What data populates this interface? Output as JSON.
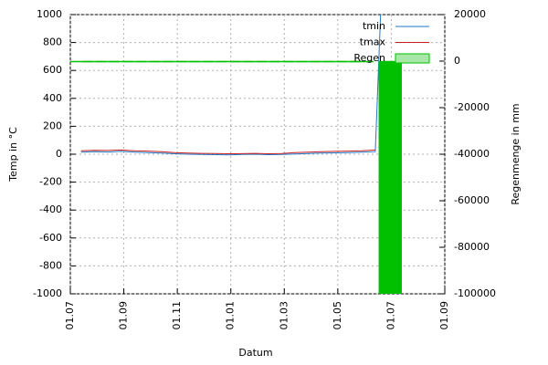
{
  "chart_data": {
    "type": "line",
    "xlabel": "Datum",
    "ylabel": "Temp in °C",
    "y2label": "Regenmenge in mm",
    "xlim": [
      0,
      14
    ],
    "xticks": [
      {
        "value": 0,
        "label": "01.07"
      },
      {
        "value": 2,
        "label": "01.09"
      },
      {
        "value": 4,
        "label": "01.11"
      },
      {
        "value": 6,
        "label": "01.01"
      },
      {
        "value": 8,
        "label": "01.03"
      },
      {
        "value": 10,
        "label": "01.05"
      },
      {
        "value": 12,
        "label": "01.07"
      },
      {
        "value": 14,
        "label": "01.09"
      }
    ],
    "ylim": [
      -1000,
      1000
    ],
    "yticks": [
      -1000,
      -800,
      -600,
      -400,
      -200,
      0,
      200,
      400,
      600,
      800,
      1000
    ],
    "y2lim": [
      -100000,
      20000
    ],
    "y2ticks": [
      -100000,
      -80000,
      -60000,
      -40000,
      -20000,
      0,
      20000
    ],
    "grid": true,
    "legend": "top-right",
    "series": [
      {
        "name": "tmin",
        "color": "#1f78c8",
        "style": "line",
        "x": [
          0.4,
          0.9,
          1.4,
          1.9,
          2.4,
          2.9,
          3.4,
          3.9,
          4.4,
          4.9,
          5.4,
          5.9,
          6.4,
          6.9,
          7.4,
          7.9,
          8.4,
          8.9,
          9.4,
          9.9,
          10.4,
          10.9,
          11.4,
          11.6
        ],
        "values": [
          15,
          18,
          16,
          20,
          15,
          12,
          8,
          3,
          0,
          -2,
          -3,
          -5,
          -2,
          0,
          -3,
          -2,
          2,
          5,
          8,
          10,
          12,
          15,
          18,
          1000
        ]
      },
      {
        "name": "tmax",
        "color": "#c81e1e",
        "style": "line",
        "x": [
          0.4,
          0.9,
          1.4,
          1.9,
          2.4,
          2.9,
          3.4,
          3.9,
          4.4,
          4.9,
          5.4,
          5.9,
          6.4,
          6.9,
          7.4,
          7.9,
          8.4,
          8.9,
          9.4,
          9.9,
          10.4,
          10.9,
          11.4
        ],
        "values": [
          25,
          28,
          27,
          30,
          25,
          22,
          18,
          12,
          8,
          6,
          5,
          3,
          4,
          6,
          3,
          5,
          12,
          15,
          18,
          20,
          22,
          25,
          30
        ]
      },
      {
        "name": "Regen",
        "color": "#00c000",
        "style": "boxes",
        "axis": "y2",
        "x": [
          0.4,
          0.9,
          1.4,
          1.9,
          2.4,
          2.9,
          3.4,
          3.9,
          4.4,
          4.9,
          5.4,
          5.9,
          6.4,
          6.9,
          7.4,
          7.9,
          8.4,
          8.9,
          9.4,
          9.9,
          10.4,
          10.9,
          11.96
        ],
        "values": [
          0,
          0,
          0,
          0,
          0,
          0,
          0,
          0,
          0,
          0,
          0,
          0,
          0,
          0,
          0,
          0,
          0,
          0,
          0,
          0,
          0,
          0,
          -100000
        ]
      }
    ]
  }
}
